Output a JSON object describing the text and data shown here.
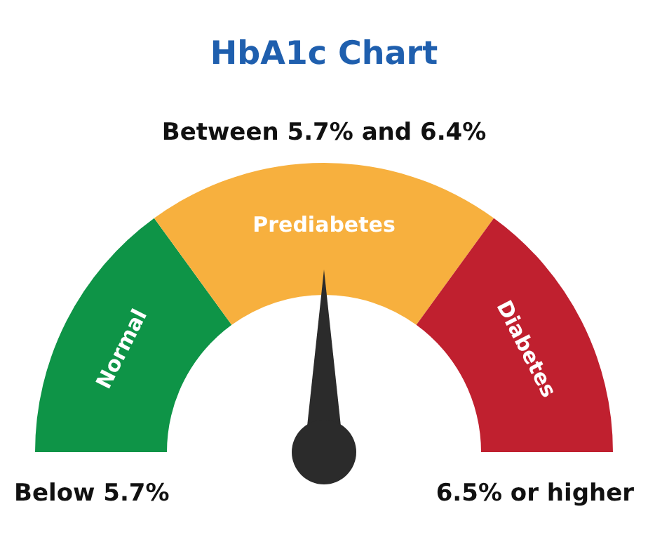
{
  "chart_data": {
    "type": "donut",
    "title": "HbA1c Chart",
    "categories": [
      "Normal",
      "Prediabetes",
      "Diabetes"
    ],
    "values": [
      30,
      40,
      30
    ],
    "colors": [
      "#0e9447",
      "#f7b03e",
      "#c0202f"
    ],
    "needle": "Prediabetes",
    "legend": false,
    "annotations": [
      "Between 5.7% and 6.4%",
      "Below 5.7%",
      "6.5% or higher"
    ]
  }
}
